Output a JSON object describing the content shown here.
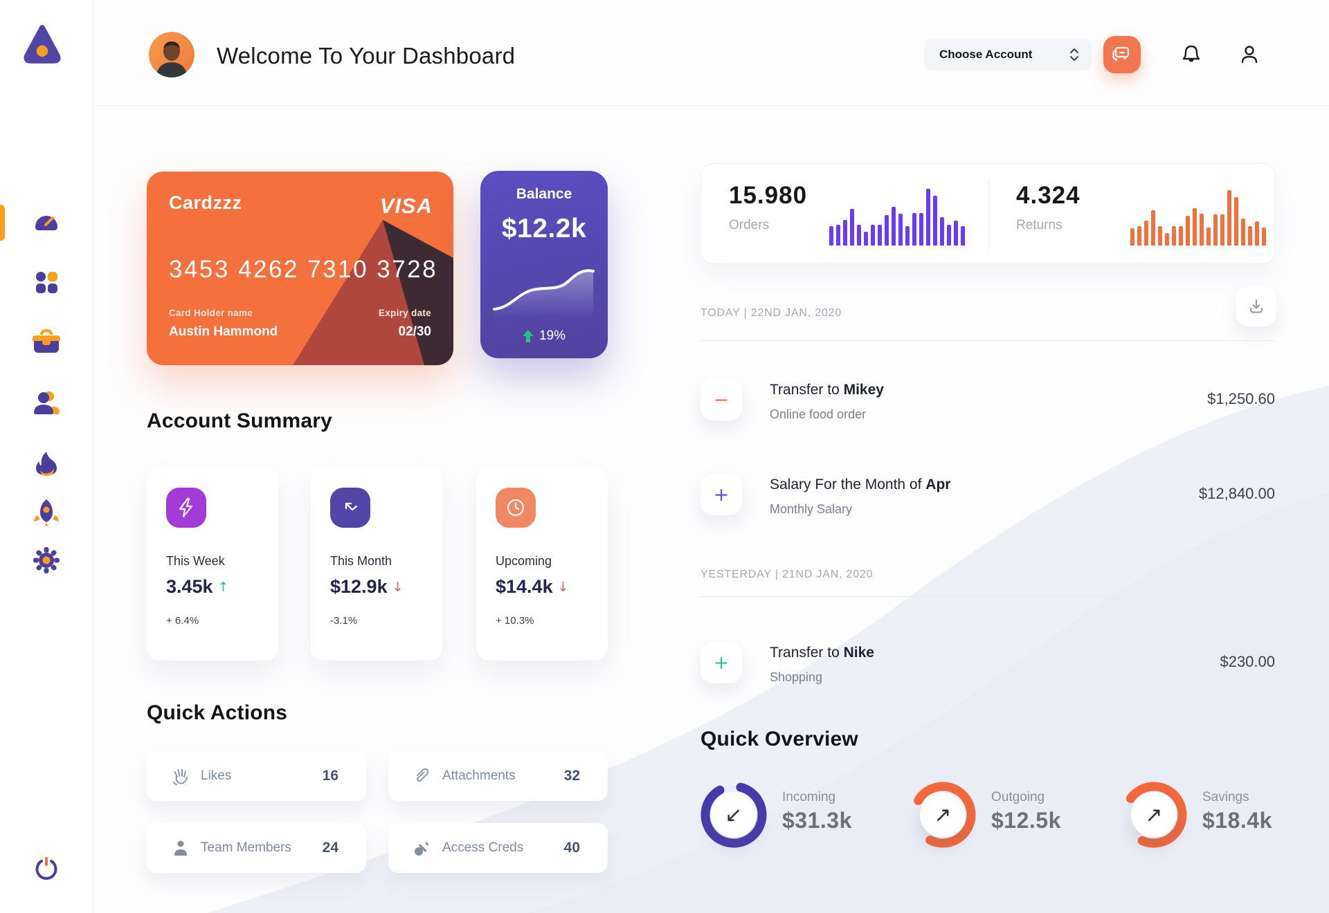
{
  "header": {
    "title": "Welcome To Your Dashboard",
    "account_select_label": "Choose Account"
  },
  "sidebar": {
    "items": [
      "dashboard",
      "apps-grid",
      "briefcase",
      "team",
      "flame",
      "rocket",
      "settings-gear"
    ],
    "power": "power"
  },
  "credit_card": {
    "name": "Cardzzz",
    "brand": "VISA",
    "number": "3453 4262 7310 3728",
    "holder_label": "Card Holder name",
    "holder_name": "Austin Hammond",
    "expiry_label": "Expiry date",
    "expiry": "02/30"
  },
  "balance_card": {
    "label": "Balance",
    "value": "$12.2k",
    "change": "19%"
  },
  "stats": {
    "orders": {
      "value": "15.980",
      "label": "Orders",
      "color": "#6B3BF3",
      "bars": [
        34,
        37,
        45,
        65,
        37,
        24,
        36,
        36,
        54,
        68,
        56,
        34,
        57,
        57,
        100,
        88,
        50,
        36,
        44,
        34
      ]
    },
    "returns": {
      "value": "4.324",
      "label": "Returns",
      "color": "#F2703C",
      "bars": [
        30,
        34,
        44,
        62,
        34,
        22,
        34,
        34,
        52,
        66,
        56,
        32,
        55,
        55,
        97,
        85,
        47,
        34,
        43,
        32
      ]
    }
  },
  "account_summary": {
    "title": "Account Summary",
    "cards": [
      {
        "label": "This Week",
        "value": "3.45k",
        "arrow": "↑",
        "arrow_color": "#2EBD85",
        "change": "+ 6.4%",
        "icon_bg": "#A43BD8",
        "icon": "lightning"
      },
      {
        "label": "This Month",
        "value": "$12.9k",
        "arrow": "↓",
        "arrow_color": "#E25C5C",
        "change": "-3.1%",
        "icon_bg": "#5344A8",
        "icon": "trend-arrow"
      },
      {
        "label": "Upcoming",
        "value": "$14.4k",
        "arrow": "↓",
        "arrow_color": "#E25C5C",
        "change": "+ 10.3%",
        "icon_bg": "#F28763",
        "icon": "clock"
      }
    ]
  },
  "quick_actions": {
    "title": "Quick Actions",
    "items": [
      {
        "label": "Likes",
        "count": "16",
        "icon": "hand"
      },
      {
        "label": "Attachments",
        "count": "32",
        "icon": "paperclip"
      },
      {
        "label": "Team Members",
        "count": "24",
        "icon": "member"
      },
      {
        "label": "Access Creds",
        "count": "40",
        "icon": "key"
      }
    ]
  },
  "transactions": {
    "groups": [
      {
        "date_label": "TODAY | 22ND JAN, 2020"
      },
      {
        "date_label": "YESTERDAY | 21ND JAN, 2020"
      }
    ],
    "items": [
      {
        "title_text": "Transfer to ",
        "title_bold": "Mikey",
        "subtitle": "Online food order",
        "amount": "$1,250.60",
        "sign": "−",
        "sign_color": "#F2764F"
      },
      {
        "title_text": "Salary For the Month of ",
        "title_bold": "Apr",
        "subtitle": "Monthly Salary",
        "amount": "$12,840.00",
        "sign": "+",
        "sign_color": "#5D4FD8"
      },
      {
        "title_text": "Transfer to ",
        "title_bold": "Nike",
        "subtitle": "Shopping",
        "amount": "$230.00",
        "sign": "+",
        "sign_color": "#2EC79A"
      }
    ]
  },
  "quick_overview": {
    "title": "Quick Overview",
    "items": [
      {
        "label": "Incoming",
        "value": "$31.3k",
        "arrow": "↙",
        "ring_color": "#473AAC",
        "pct": 88,
        "rotate": -76
      },
      {
        "label": "Outgoing",
        "value": "$12.5k",
        "arrow": "↗",
        "ring_color": "#F4683C",
        "pct": 74,
        "rotate": -150
      },
      {
        "label": "Savings",
        "value": "$18.4k",
        "arrow": "↗",
        "ring_color": "#F4683C",
        "pct": 72,
        "rotate": -145
      }
    ]
  }
}
